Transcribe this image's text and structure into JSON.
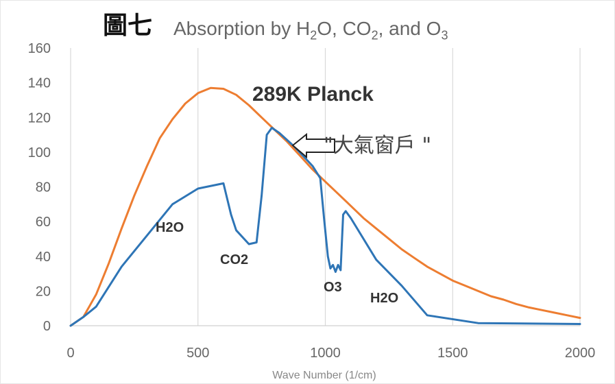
{
  "chart_data": {
    "type": "line",
    "figure_label": "圖七",
    "title_parts": {
      "t1": "Absorption by H",
      "s1": "2",
      "t2": "O, CO",
      "s2": "2",
      "t3": ", and O",
      "s3": "3"
    },
    "xlabel": "Wave Number (1/cm)",
    "ylabel": "",
    "xlim": [
      0,
      2000
    ],
    "ylim": [
      0,
      160
    ],
    "xticks": [
      "0",
      "500",
      "1000",
      "1500",
      "2000"
    ],
    "yticks": [
      "0",
      "20",
      "40",
      "60",
      "80",
      "100",
      "120",
      "140",
      "160"
    ],
    "grid": "vertical",
    "legend": "none",
    "series": [
      {
        "name": "289K Planck",
        "color": "#ED7D31",
        "points": [
          [
            0,
            0
          ],
          [
            50,
            5
          ],
          [
            100,
            18
          ],
          [
            150,
            36
          ],
          [
            200,
            56
          ],
          [
            250,
            75
          ],
          [
            300,
            92
          ],
          [
            350,
            108
          ],
          [
            400,
            119
          ],
          [
            450,
            128
          ],
          [
            500,
            134
          ],
          [
            550,
            137
          ],
          [
            600,
            136.5
          ],
          [
            650,
            133
          ],
          [
            700,
            127
          ],
          [
            750,
            120
          ],
          [
            800,
            113
          ],
          [
            850,
            106
          ],
          [
            900,
            98
          ],
          [
            950,
            90
          ],
          [
            1000,
            83
          ],
          [
            1050,
            76
          ],
          [
            1100,
            69
          ],
          [
            1150,
            62
          ],
          [
            1200,
            56
          ],
          [
            1250,
            50
          ],
          [
            1300,
            44
          ],
          [
            1350,
            39
          ],
          [
            1400,
            34
          ],
          [
            1450,
            30
          ],
          [
            1500,
            26
          ],
          [
            1550,
            23
          ],
          [
            1600,
            20
          ],
          [
            1650,
            17
          ],
          [
            1700,
            15
          ],
          [
            1750,
            12.5
          ],
          [
            1800,
            10.5
          ],
          [
            1850,
            9
          ],
          [
            1900,
            7.5
          ],
          [
            1950,
            6
          ],
          [
            2000,
            4.5
          ]
        ]
      },
      {
        "name": "",
        "color": "#2E75B6",
        "points": [
          [
            0,
            0
          ],
          [
            50,
            5
          ],
          [
            100,
            11
          ],
          [
            200,
            34
          ],
          [
            300,
            52
          ],
          [
            400,
            70
          ],
          [
            500,
            79
          ],
          [
            600,
            82
          ],
          [
            630,
            64
          ],
          [
            650,
            55
          ],
          [
            700,
            47
          ],
          [
            730,
            48
          ],
          [
            750,
            75
          ],
          [
            770,
            110
          ],
          [
            790,
            114
          ],
          [
            820,
            111
          ],
          [
            880,
            103
          ],
          [
            950,
            92
          ],
          [
            980,
            85
          ],
          [
            995,
            62
          ],
          [
            1010,
            40
          ],
          [
            1020,
            33
          ],
          [
            1030,
            35
          ],
          [
            1040,
            31
          ],
          [
            1050,
            35
          ],
          [
            1060,
            32
          ],
          [
            1070,
            64
          ],
          [
            1080,
            66
          ],
          [
            1100,
            62
          ],
          [
            1200,
            38
          ],
          [
            1300,
            23
          ],
          [
            1400,
            6
          ],
          [
            1600,
            1.5
          ],
          [
            2000,
            1
          ]
        ]
      }
    ],
    "annotations": {
      "planck_label": "289K Planck",
      "window_label": "\"大氣窗戶 \"",
      "h2o_low": "H2O",
      "co2": "CO2",
      "o3": "O3",
      "h2o_high": "H2O"
    }
  }
}
